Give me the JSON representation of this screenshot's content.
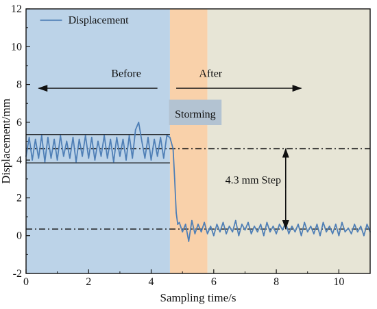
{
  "chart_data": {
    "type": "line",
    "xlabel": "Sampling time/s",
    "ylabel": "Displacement/mm",
    "xlim": [
      0,
      11
    ],
    "ylim": [
      -2,
      12
    ],
    "x_ticks": [
      0,
      2,
      4,
      6,
      8,
      10
    ],
    "y_ticks": [
      -2,
      0,
      2,
      4,
      6,
      8,
      10,
      12
    ],
    "legend": {
      "position": "top-left",
      "entries": [
        "Displacement"
      ]
    },
    "colors": {
      "series": "#4f7fb6",
      "region_before": "#bcd3e8",
      "region_storming": "#f9d1aa",
      "region_after": "#e7e5d6"
    },
    "regions": [
      {
        "name": "before",
        "x": [
          0,
          4.6
        ]
      },
      {
        "name": "storming",
        "x": [
          4.6,
          5.8
        ]
      },
      {
        "name": "after",
        "x": [
          5.8,
          11
        ]
      }
    ],
    "series": [
      {
        "name": "Displacement",
        "x": [
          0,
          0.1,
          0.2,
          0.3,
          0.4,
          0.5,
          0.6,
          0.7,
          0.8,
          0.9,
          1.0,
          1.1,
          1.2,
          1.3,
          1.4,
          1.5,
          1.6,
          1.7,
          1.8,
          1.9,
          2.0,
          2.1,
          2.2,
          2.3,
          2.4,
          2.5,
          2.6,
          2.7,
          2.8,
          2.9,
          3.0,
          3.1,
          3.2,
          3.3,
          3.4,
          3.5,
          3.6,
          3.7,
          3.8,
          3.9,
          4.0,
          4.1,
          4.2,
          4.3,
          4.4,
          4.5,
          4.6,
          4.7,
          4.75,
          4.8,
          4.85,
          4.9,
          5.0,
          5.1,
          5.2,
          5.3,
          5.4,
          5.5,
          5.6,
          5.7,
          5.8,
          5.9,
          6.0,
          6.1,
          6.2,
          6.3,
          6.4,
          6.5,
          6.6,
          6.7,
          6.8,
          6.9,
          7.0,
          7.1,
          7.2,
          7.3,
          7.4,
          7.5,
          7.6,
          7.7,
          7.8,
          7.9,
          8.0,
          8.1,
          8.2,
          8.3,
          8.4,
          8.5,
          8.6,
          8.7,
          8.8,
          8.9,
          9.0,
          9.1,
          9.2,
          9.3,
          9.4,
          9.5,
          9.6,
          9.7,
          9.8,
          9.9,
          10.0,
          10.1,
          10.2,
          10.3,
          10.4,
          10.5,
          10.6,
          10.7,
          10.8,
          10.9,
          11.0
        ],
        "y": [
          4.2,
          5.2,
          4.0,
          5.1,
          4.1,
          5.3,
          3.9,
          5.2,
          4.1,
          5.1,
          4.0,
          5.3,
          4.2,
          5.0,
          4.1,
          5.2,
          3.9,
          5.1,
          4.2,
          5.3,
          4.1,
          5.2,
          4.0,
          5.0,
          4.2,
          5.3,
          4.1,
          5.1,
          3.9,
          5.2,
          4.2,
          5.1,
          4.0,
          5.3,
          4.1,
          5.6,
          6.0,
          5.0,
          4.1,
          5.2,
          4.0,
          5.1,
          4.2,
          5.2,
          4.1,
          5.3,
          5.2,
          4.6,
          3.0,
          1.2,
          0.6,
          0.7,
          0.2,
          0.6,
          -0.3,
          0.8,
          0.1,
          0.6,
          0.2,
          0.7,
          0.1,
          0.5,
          0.0,
          0.6,
          0.2,
          0.7,
          0.1,
          0.5,
          0.2,
          0.8,
          0.0,
          0.6,
          0.3,
          0.7,
          0.1,
          0.5,
          0.2,
          0.6,
          0.0,
          0.7,
          0.2,
          0.5,
          0.1,
          0.6,
          0.3,
          0.7,
          0.1,
          0.5,
          0.2,
          0.6,
          0.0,
          0.7,
          0.2,
          0.5,
          0.1,
          0.6,
          0.0,
          0.7,
          0.2,
          0.5,
          0.1,
          0.6,
          0.0,
          0.7,
          0.2,
          0.4,
          0.1,
          0.6,
          0.2,
          0.5,
          0.0,
          0.6,
          0.2
        ]
      }
    ],
    "reference_lines": {
      "before_mean": {
        "y": 4.6,
        "x": [
          0,
          11
        ],
        "style": "dash-dot"
      },
      "after_mean": {
        "y": 0.35,
        "x": [
          0,
          11
        ],
        "style": "dash-dot"
      },
      "before_upper": {
        "y": 5.35,
        "x": [
          0,
          4.6
        ],
        "style": "solid"
      },
      "before_lower": {
        "y": 3.85,
        "x": [
          0,
          4.6
        ],
        "style": "solid"
      }
    },
    "annotations": {
      "before_label": "Before",
      "after_label": "After",
      "storming_label": "Storming",
      "step_label": "4.3 mm Step",
      "arrow_before": {
        "from": [
          4.2,
          7.8
        ],
        "to": [
          0.4,
          7.8
        ]
      },
      "arrow_after": {
        "from": [
          4.8,
          7.8
        ],
        "to": [
          8.8,
          7.8
        ]
      },
      "step_arrow": {
        "x": 8.3,
        "from": 4.6,
        "to": 0.35
      }
    }
  }
}
